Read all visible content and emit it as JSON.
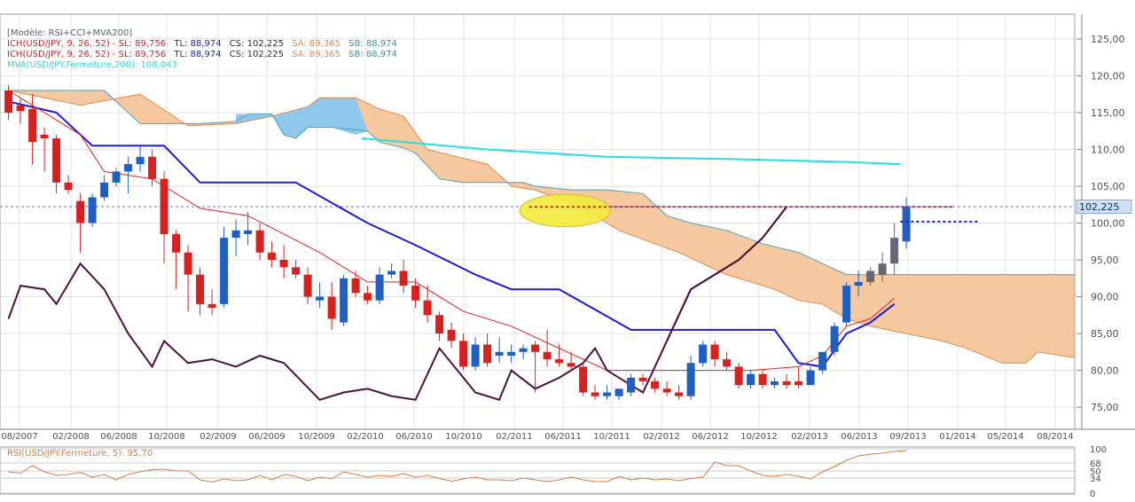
{
  "legend": {
    "model": "[Modèle: RSI+CCI+MVA200]",
    "lines": [
      {
        "prefix": "ICH(USD/JPY, 9, 26, 52) -  SL: 89,756",
        "tl": "TL: 88,974",
        "cs": "CS: 102,225",
        "sa": "SA: 89,365",
        "sb": "SB: 88,974"
      },
      {
        "prefix": "ICH(USD/JPY, 9, 26, 52) -  SL: 89,756",
        "tl": "TL: 88,974",
        "cs": "CS: 102,225",
        "sa": "SA: 89,365",
        "sb": "SB: 88,974"
      }
    ],
    "mva": "MVA(USD/JPY.Fermeture,200): 108,043"
  },
  "colors": {
    "background": "#ffffff",
    "grid": "#e2e2e2",
    "up_candle": "#1f5fbf",
    "down_candle": "#d8201e",
    "cloud_fill": "#f6c59a",
    "cloud_bull_fill": "#8ec8ec",
    "senkou_a": "#e08a4a",
    "senkou_b": "#4aa0b8",
    "kijun": "#1a1ae0",
    "tenkan": "#e02020",
    "chikou": "#4a1040",
    "mva": "#22e0e8",
    "price_line": "#2233dd",
    "resistance": "#e02030",
    "ellipse": "#f2ec3a",
    "rsi": "#e07a3a",
    "price_badge": "#cfe0f5"
  },
  "chart_data": {
    "type": "candlestick",
    "title": "",
    "x_tick_labels": [
      "08/2007",
      "02/2008",
      "06/2008",
      "10/2008",
      "02/2009",
      "06/2009",
      "10/2009",
      "02/2010",
      "06/2010",
      "10/2010",
      "02/2011",
      "06/2011",
      "10/2011",
      "02/2012",
      "06/2012",
      "10/2012",
      "02/2013",
      "06/2013",
      "09/2013",
      "01/2014",
      "05/2014",
      "08/2014"
    ],
    "y_ticks": [
      "125,00",
      "120,00",
      "115,00",
      "110,00",
      "105,00",
      "100,00",
      "95,00",
      "90,00",
      "85,00",
      "80,00",
      "75,00"
    ],
    "ylim": [
      72,
      128
    ],
    "last_price_label": "102,225",
    "last_price": 102.225,
    "candles": [
      {
        "o": 118,
        "h": 118.8,
        "l": 114,
        "c": 115
      },
      {
        "o": 116,
        "h": 117,
        "l": 113.5,
        "c": 115.2
      },
      {
        "o": 115.5,
        "h": 117.5,
        "l": 108,
        "c": 111
      },
      {
        "o": 112,
        "h": 113,
        "l": 107,
        "c": 111.5
      },
      {
        "o": 111.5,
        "h": 112,
        "l": 104,
        "c": 105.5
      },
      {
        "o": 105.5,
        "h": 106.5,
        "l": 104,
        "c": 104.5
      },
      {
        "o": 103,
        "h": 104,
        "l": 96,
        "c": 100
      },
      {
        "o": 100,
        "h": 104,
        "l": 99.5,
        "c": 103.5
      },
      {
        "o": 103.5,
        "h": 106.5,
        "l": 103,
        "c": 105.5
      },
      {
        "o": 105.5,
        "h": 107.5,
        "l": 105,
        "c": 107
      },
      {
        "o": 107,
        "h": 109,
        "l": 104,
        "c": 108
      },
      {
        "o": 108,
        "h": 110.5,
        "l": 107,
        "c": 109
      },
      {
        "o": 109,
        "h": 110,
        "l": 105,
        "c": 106
      },
      {
        "o": 106,
        "h": 107,
        "l": 94.5,
        "c": 98.5
      },
      {
        "o": 98.5,
        "h": 99,
        "l": 91,
        "c": 96
      },
      {
        "o": 96,
        "h": 97,
        "l": 88,
        "c": 93
      },
      {
        "o": 93,
        "h": 94,
        "l": 87.5,
        "c": 89
      },
      {
        "o": 89,
        "h": 91,
        "l": 87.5,
        "c": 88.5
      },
      {
        "o": 89,
        "h": 99.5,
        "l": 88.5,
        "c": 98
      },
      {
        "o": 98,
        "h": 100.5,
        "l": 95.5,
        "c": 99
      },
      {
        "o": 98.5,
        "h": 101.5,
        "l": 97,
        "c": 99
      },
      {
        "o": 99,
        "h": 100,
        "l": 95,
        "c": 96
      },
      {
        "o": 96,
        "h": 97.5,
        "l": 94,
        "c": 95
      },
      {
        "o": 95,
        "h": 97,
        "l": 92.5,
        "c": 94
      },
      {
        "o": 94,
        "h": 95,
        "l": 92.5,
        "c": 93
      },
      {
        "o": 93,
        "h": 94,
        "l": 89,
        "c": 90
      },
      {
        "o": 89.5,
        "h": 92,
        "l": 88.5,
        "c": 90
      },
      {
        "o": 90,
        "h": 92,
        "l": 85.5,
        "c": 87
      },
      {
        "o": 86.5,
        "h": 93,
        "l": 86,
        "c": 92.5
      },
      {
        "o": 92.5,
        "h": 93.5,
        "l": 90,
        "c": 90.5
      },
      {
        "o": 90.5,
        "h": 91.5,
        "l": 89,
        "c": 89.5
      },
      {
        "o": 89.5,
        "h": 94,
        "l": 89,
        "c": 93
      },
      {
        "o": 93,
        "h": 94.5,
        "l": 92.5,
        "c": 93.5
      },
      {
        "o": 93.5,
        "h": 95,
        "l": 90.5,
        "c": 91.5
      },
      {
        "o": 91.5,
        "h": 92.5,
        "l": 88.5,
        "c": 89.5
      },
      {
        "o": 89.5,
        "h": 91.5,
        "l": 86.5,
        "c": 87.5
      },
      {
        "o": 87.5,
        "h": 88,
        "l": 84,
        "c": 85
      },
      {
        "o": 85.5,
        "h": 86.5,
        "l": 83,
        "c": 84
      },
      {
        "o": 84,
        "h": 85,
        "l": 80,
        "c": 80.5
      },
      {
        "o": 80.5,
        "h": 84.5,
        "l": 80,
        "c": 83.5
      },
      {
        "o": 83.5,
        "h": 85,
        "l": 80.5,
        "c": 81
      },
      {
        "o": 82,
        "h": 84.5,
        "l": 81,
        "c": 82.5
      },
      {
        "o": 82,
        "h": 83.5,
        "l": 81,
        "c": 82.5
      },
      {
        "o": 82.5,
        "h": 83.5,
        "l": 81.5,
        "c": 83
      },
      {
        "o": 83.5,
        "h": 84,
        "l": 77,
        "c": 82.5
      },
      {
        "o": 82.5,
        "h": 85.5,
        "l": 80.5,
        "c": 81.5
      },
      {
        "o": 81.5,
        "h": 83.5,
        "l": 80.5,
        "c": 81
      },
      {
        "o": 81,
        "h": 82.5,
        "l": 80,
        "c": 80.5
      },
      {
        "o": 80.5,
        "h": 81,
        "l": 76.5,
        "c": 77
      },
      {
        "o": 77,
        "h": 78,
        "l": 76,
        "c": 76.5
      },
      {
        "o": 76.5,
        "h": 78,
        "l": 76,
        "c": 77
      },
      {
        "o": 76.5,
        "h": 77.5,
        "l": 76,
        "c": 77.5
      },
      {
        "o": 77,
        "h": 79.5,
        "l": 76.5,
        "c": 79
      },
      {
        "o": 79,
        "h": 79.5,
        "l": 78,
        "c": 78.5
      },
      {
        "o": 78.5,
        "h": 79,
        "l": 77,
        "c": 77.5
      },
      {
        "o": 77.5,
        "h": 78.5,
        "l": 76.5,
        "c": 77
      },
      {
        "o": 77,
        "h": 78,
        "l": 76,
        "c": 76.5
      },
      {
        "o": 76.5,
        "h": 82,
        "l": 76,
        "c": 81
      },
      {
        "o": 81,
        "h": 84,
        "l": 80.5,
        "c": 83.5
      },
      {
        "o": 83.5,
        "h": 84,
        "l": 80.5,
        "c": 81.5
      },
      {
        "o": 81.5,
        "h": 82.5,
        "l": 80,
        "c": 80.5
      },
      {
        "o": 80.5,
        "h": 81,
        "l": 77.5,
        "c": 78
      },
      {
        "o": 78,
        "h": 80,
        "l": 77.5,
        "c": 79.5
      },
      {
        "o": 79.5,
        "h": 80,
        "l": 77.5,
        "c": 78
      },
      {
        "o": 78,
        "h": 79,
        "l": 77.5,
        "c": 78.5
      },
      {
        "o": 78.5,
        "h": 79.5,
        "l": 77.5,
        "c": 78
      },
      {
        "o": 78.5,
        "h": 80.5,
        "l": 77.5,
        "c": 78
      },
      {
        "o": 78,
        "h": 80.5,
        "l": 78,
        "c": 80
      },
      {
        "o": 80,
        "h": 82.5,
        "l": 79.5,
        "c": 82.5
      },
      {
        "o": 82.5,
        "h": 86.5,
        "l": 82,
        "c": 86
      },
      {
        "o": 86.5,
        "h": 92,
        "l": 86,
        "c": 91.5
      },
      {
        "o": 91.5,
        "h": 93.5,
        "l": 90,
        "c": 92
      },
      {
        "o": 92,
        "h": 94,
        "l": 91.5,
        "c": 93.5
      },
      {
        "o": 93,
        "h": 96,
        "l": 92,
        "c": 94.5
      },
      {
        "o": 94.5,
        "h": 100,
        "l": 93,
        "c": 98
      },
      {
        "o": 97.5,
        "h": 103.5,
        "l": 96.5,
        "c": 102.2
      }
    ],
    "tenkan": [
      [
        0,
        118
      ],
      [
        6,
        112
      ],
      [
        8,
        107
      ],
      [
        12,
        106
      ],
      [
        16,
        102
      ],
      [
        20,
        101
      ],
      [
        26,
        96
      ],
      [
        30,
        92
      ],
      [
        34,
        92
      ],
      [
        38,
        88
      ],
      [
        42,
        86
      ],
      [
        46,
        83
      ],
      [
        50,
        80
      ],
      [
        54,
        80
      ],
      [
        58,
        80
      ],
      [
        62,
        80
      ],
      [
        66,
        80.5
      ],
      [
        68,
        82
      ],
      [
        70,
        86
      ],
      [
        72,
        87
      ],
      [
        74,
        89.8
      ]
    ],
    "kijun": [
      [
        0,
        116.5
      ],
      [
        4,
        115
      ],
      [
        7,
        110.5
      ],
      [
        13,
        110.5
      ],
      [
        16,
        105.5
      ],
      [
        24,
        105.5
      ],
      [
        30,
        100
      ],
      [
        34,
        97
      ],
      [
        39,
        93
      ],
      [
        42,
        91
      ],
      [
        46,
        91
      ],
      [
        52,
        85.5
      ],
      [
        64,
        85.5
      ],
      [
        66,
        81
      ],
      [
        68,
        80.5
      ],
      [
        70,
        85
      ],
      [
        72,
        86.5
      ],
      [
        74,
        89
      ]
    ],
    "chikou": [
      [
        0,
        87
      ],
      [
        1,
        91.5
      ],
      [
        3,
        91
      ],
      [
        4,
        89
      ],
      [
        6,
        94.5
      ],
      [
        8,
        91
      ],
      [
        10,
        85
      ],
      [
        12,
        80.5
      ],
      [
        13,
        84
      ],
      [
        15,
        81
      ],
      [
        17,
        81.5
      ],
      [
        19,
        80.5
      ],
      [
        21,
        82
      ],
      [
        23,
        81
      ],
      [
        26,
        76
      ],
      [
        28,
        77
      ],
      [
        30,
        77.5
      ],
      [
        32,
        76.5
      ],
      [
        34,
        76
      ],
      [
        36,
        83
      ],
      [
        37,
        81
      ],
      [
        39,
        77
      ],
      [
        41,
        76
      ],
      [
        42,
        80
      ],
      [
        44,
        77.5
      ],
      [
        46,
        79
      ],
      [
        48,
        81
      ],
      [
        49,
        83
      ],
      [
        50,
        80
      ],
      [
        52,
        78
      ],
      [
        53,
        77
      ],
      [
        55,
        84
      ],
      [
        57,
        91
      ],
      [
        59,
        93
      ],
      [
        61,
        95
      ],
      [
        63,
        98
      ],
      [
        65,
        102.2
      ]
    ],
    "mva": [
      [
        29.5,
        111.5
      ],
      [
        40,
        110
      ],
      [
        50,
        109
      ],
      [
        60,
        108.7
      ],
      [
        70,
        108.3
      ],
      [
        74.5,
        108
      ]
    ],
    "senkou_a": [
      [
        0,
        118
      ],
      [
        3,
        117
      ],
      [
        6,
        116
      ],
      [
        11,
        117.5
      ],
      [
        15,
        113.2
      ],
      [
        19,
        113.5
      ],
      [
        22,
        114.5
      ],
      [
        25,
        115.8
      ],
      [
        26,
        117
      ],
      [
        29,
        117
      ],
      [
        31,
        115.5
      ],
      [
        33,
        114.5
      ],
      [
        35,
        110
      ],
      [
        40,
        108
      ],
      [
        42,
        105
      ],
      [
        44,
        104.5
      ],
      [
        48,
        102
      ],
      [
        51,
        99
      ],
      [
        56,
        96
      ],
      [
        60,
        93
      ],
      [
        64,
        91
      ],
      [
        66,
        89.5
      ],
      [
        68,
        89
      ],
      [
        70,
        87
      ],
      [
        72,
        86
      ],
      [
        75,
        85
      ],
      [
        78,
        84
      ],
      [
        80,
        83
      ],
      [
        83,
        81
      ],
      [
        85,
        81
      ],
      [
        86,
        82.5
      ],
      [
        88,
        82
      ],
      [
        90,
        81.5
      ],
      [
        91,
        81
      ],
      [
        92,
        80.5
      ]
    ],
    "senkou_b": [
      [
        0,
        118
      ],
      [
        5,
        118
      ],
      [
        8,
        118
      ],
      [
        11,
        113.5
      ],
      [
        16,
        113.5
      ],
      [
        19,
        113.8
      ],
      [
        20,
        114.8
      ],
      [
        22,
        114.8
      ],
      [
        23,
        112
      ],
      [
        24,
        111.5
      ],
      [
        25,
        113
      ],
      [
        27,
        113
      ],
      [
        30,
        112.5
      ],
      [
        31,
        111
      ],
      [
        33,
        110.2
      ],
      [
        34,
        109.5
      ],
      [
        36,
        106
      ],
      [
        38,
        105.5
      ],
      [
        41,
        105.5
      ],
      [
        43,
        105.5
      ],
      [
        44,
        105
      ],
      [
        47,
        104.5
      ],
      [
        50,
        104.5
      ],
      [
        53,
        104
      ],
      [
        54,
        102.5
      ],
      [
        55,
        101
      ],
      [
        57,
        100
      ],
      [
        60,
        99
      ],
      [
        63,
        97.2
      ],
      [
        66,
        96
      ],
      [
        68,
        94.5
      ],
      [
        70,
        93
      ],
      [
        75,
        93
      ],
      [
        80,
        93
      ],
      [
        85,
        93
      ],
      [
        90,
        93
      ],
      [
        92,
        93
      ]
    ],
    "bull_cloud": [
      [
        19,
        114.8
      ],
      [
        22,
        114.8
      ],
      [
        23,
        112
      ],
      [
        24,
        111.5
      ],
      [
        25,
        113
      ],
      [
        27,
        113
      ],
      [
        28,
        112.5
      ],
      [
        29,
        112
      ],
      [
        30,
        112.5
      ],
      [
        29,
        117
      ],
      [
        26,
        117
      ],
      [
        25,
        115.8
      ],
      [
        22,
        114.5
      ],
      [
        19,
        113.5
      ]
    ],
    "resistance": {
      "value": 102.2,
      "from": 43.5,
      "to": 79
    },
    "support": {
      "value": 100.2,
      "from": 74.5,
      "to": 81
    },
    "ellipse": {
      "center_x": 46.5,
      "center_y": 101.7,
      "rx_units": 3.8,
      "ry_units": 2.2
    },
    "rsi": {
      "label": "RSI(USD/JPY.Fermeture, 5): 95,70",
      "y_ticks": [
        "100",
        "68",
        "50",
        "34",
        "0"
      ],
      "ylim": [
        0,
        100
      ],
      "values": [
        48,
        45,
        62,
        48,
        40,
        42,
        47,
        36,
        42,
        30,
        42,
        48,
        53,
        54,
        50,
        50,
        30,
        25,
        32,
        28,
        30,
        40,
        30,
        42,
        38,
        28,
        36,
        32,
        48,
        42,
        36,
        40,
        38,
        44,
        36,
        40,
        33,
        27,
        32,
        36,
        30,
        30,
        28,
        34,
        30,
        26,
        30,
        36,
        30,
        26,
        26,
        38,
        30,
        34,
        30,
        32,
        28,
        33,
        36,
        70,
        62,
        62,
        50,
        40,
        38,
        42,
        38,
        32,
        48,
        60,
        74,
        84,
        88,
        90,
        94,
        96
      ]
    }
  }
}
